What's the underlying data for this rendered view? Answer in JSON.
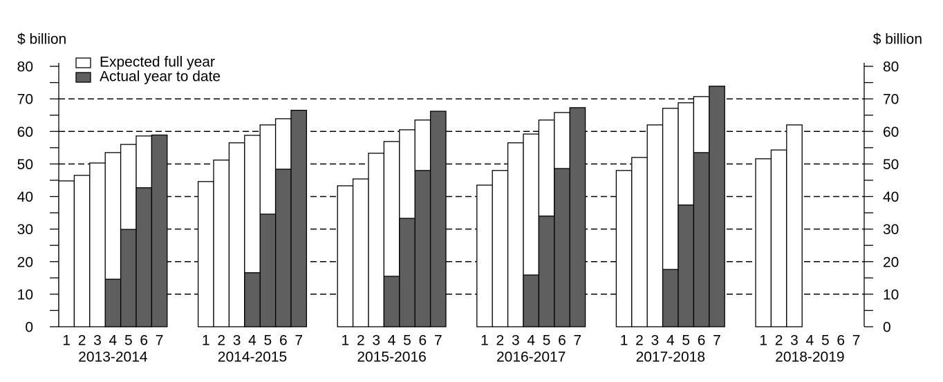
{
  "chart_data": {
    "type": "grouped-overlay-bar",
    "ylabel": "$ billion",
    "groups": [
      "2013-2014",
      "2014-2015",
      "2015-2016",
      "2016-2017",
      "2017-2018",
      "2018-2019"
    ],
    "categories": [
      "1",
      "2",
      "3",
      "4",
      "5",
      "6",
      "7"
    ],
    "series": [
      {
        "name": "Expected full year",
        "color": "#ffffff",
        "values": [
          [
            44.8,
            46.5,
            50.3,
            53.5,
            56,
            58.6,
            null
          ],
          [
            44.6,
            51.2,
            56.5,
            58.8,
            62,
            63.9,
            null
          ],
          [
            43.3,
            45.4,
            53.3,
            56.9,
            60.5,
            63.5,
            null
          ],
          [
            43.5,
            48,
            56.5,
            59.2,
            63.5,
            65.8,
            null
          ],
          [
            48,
            52,
            62,
            67.1,
            68.8,
            70.7,
            null
          ],
          [
            51.6,
            54.3,
            62,
            null,
            null,
            null,
            null
          ]
        ]
      },
      {
        "name": "Actual year to date",
        "color": "#5f5f5f",
        "values": [
          [
            null,
            null,
            null,
            14.6,
            29.9,
            42.7,
            58.9
          ],
          [
            null,
            null,
            null,
            16.6,
            34.6,
            48.4,
            66.5
          ],
          [
            null,
            null,
            null,
            15.5,
            33.3,
            48,
            66.2
          ],
          [
            null,
            null,
            null,
            15.9,
            34,
            48.6,
            67.3
          ],
          [
            null,
            null,
            null,
            17.6,
            37.4,
            53.5,
            73.9
          ],
          [
            null,
            null,
            null,
            null,
            null,
            null,
            null
          ]
        ]
      }
    ],
    "ylim": [
      0,
      80
    ],
    "yticks": [
      0,
      10,
      20,
      30,
      40,
      50,
      60,
      70,
      80
    ],
    "grid": true,
    "legend": "upper left"
  }
}
